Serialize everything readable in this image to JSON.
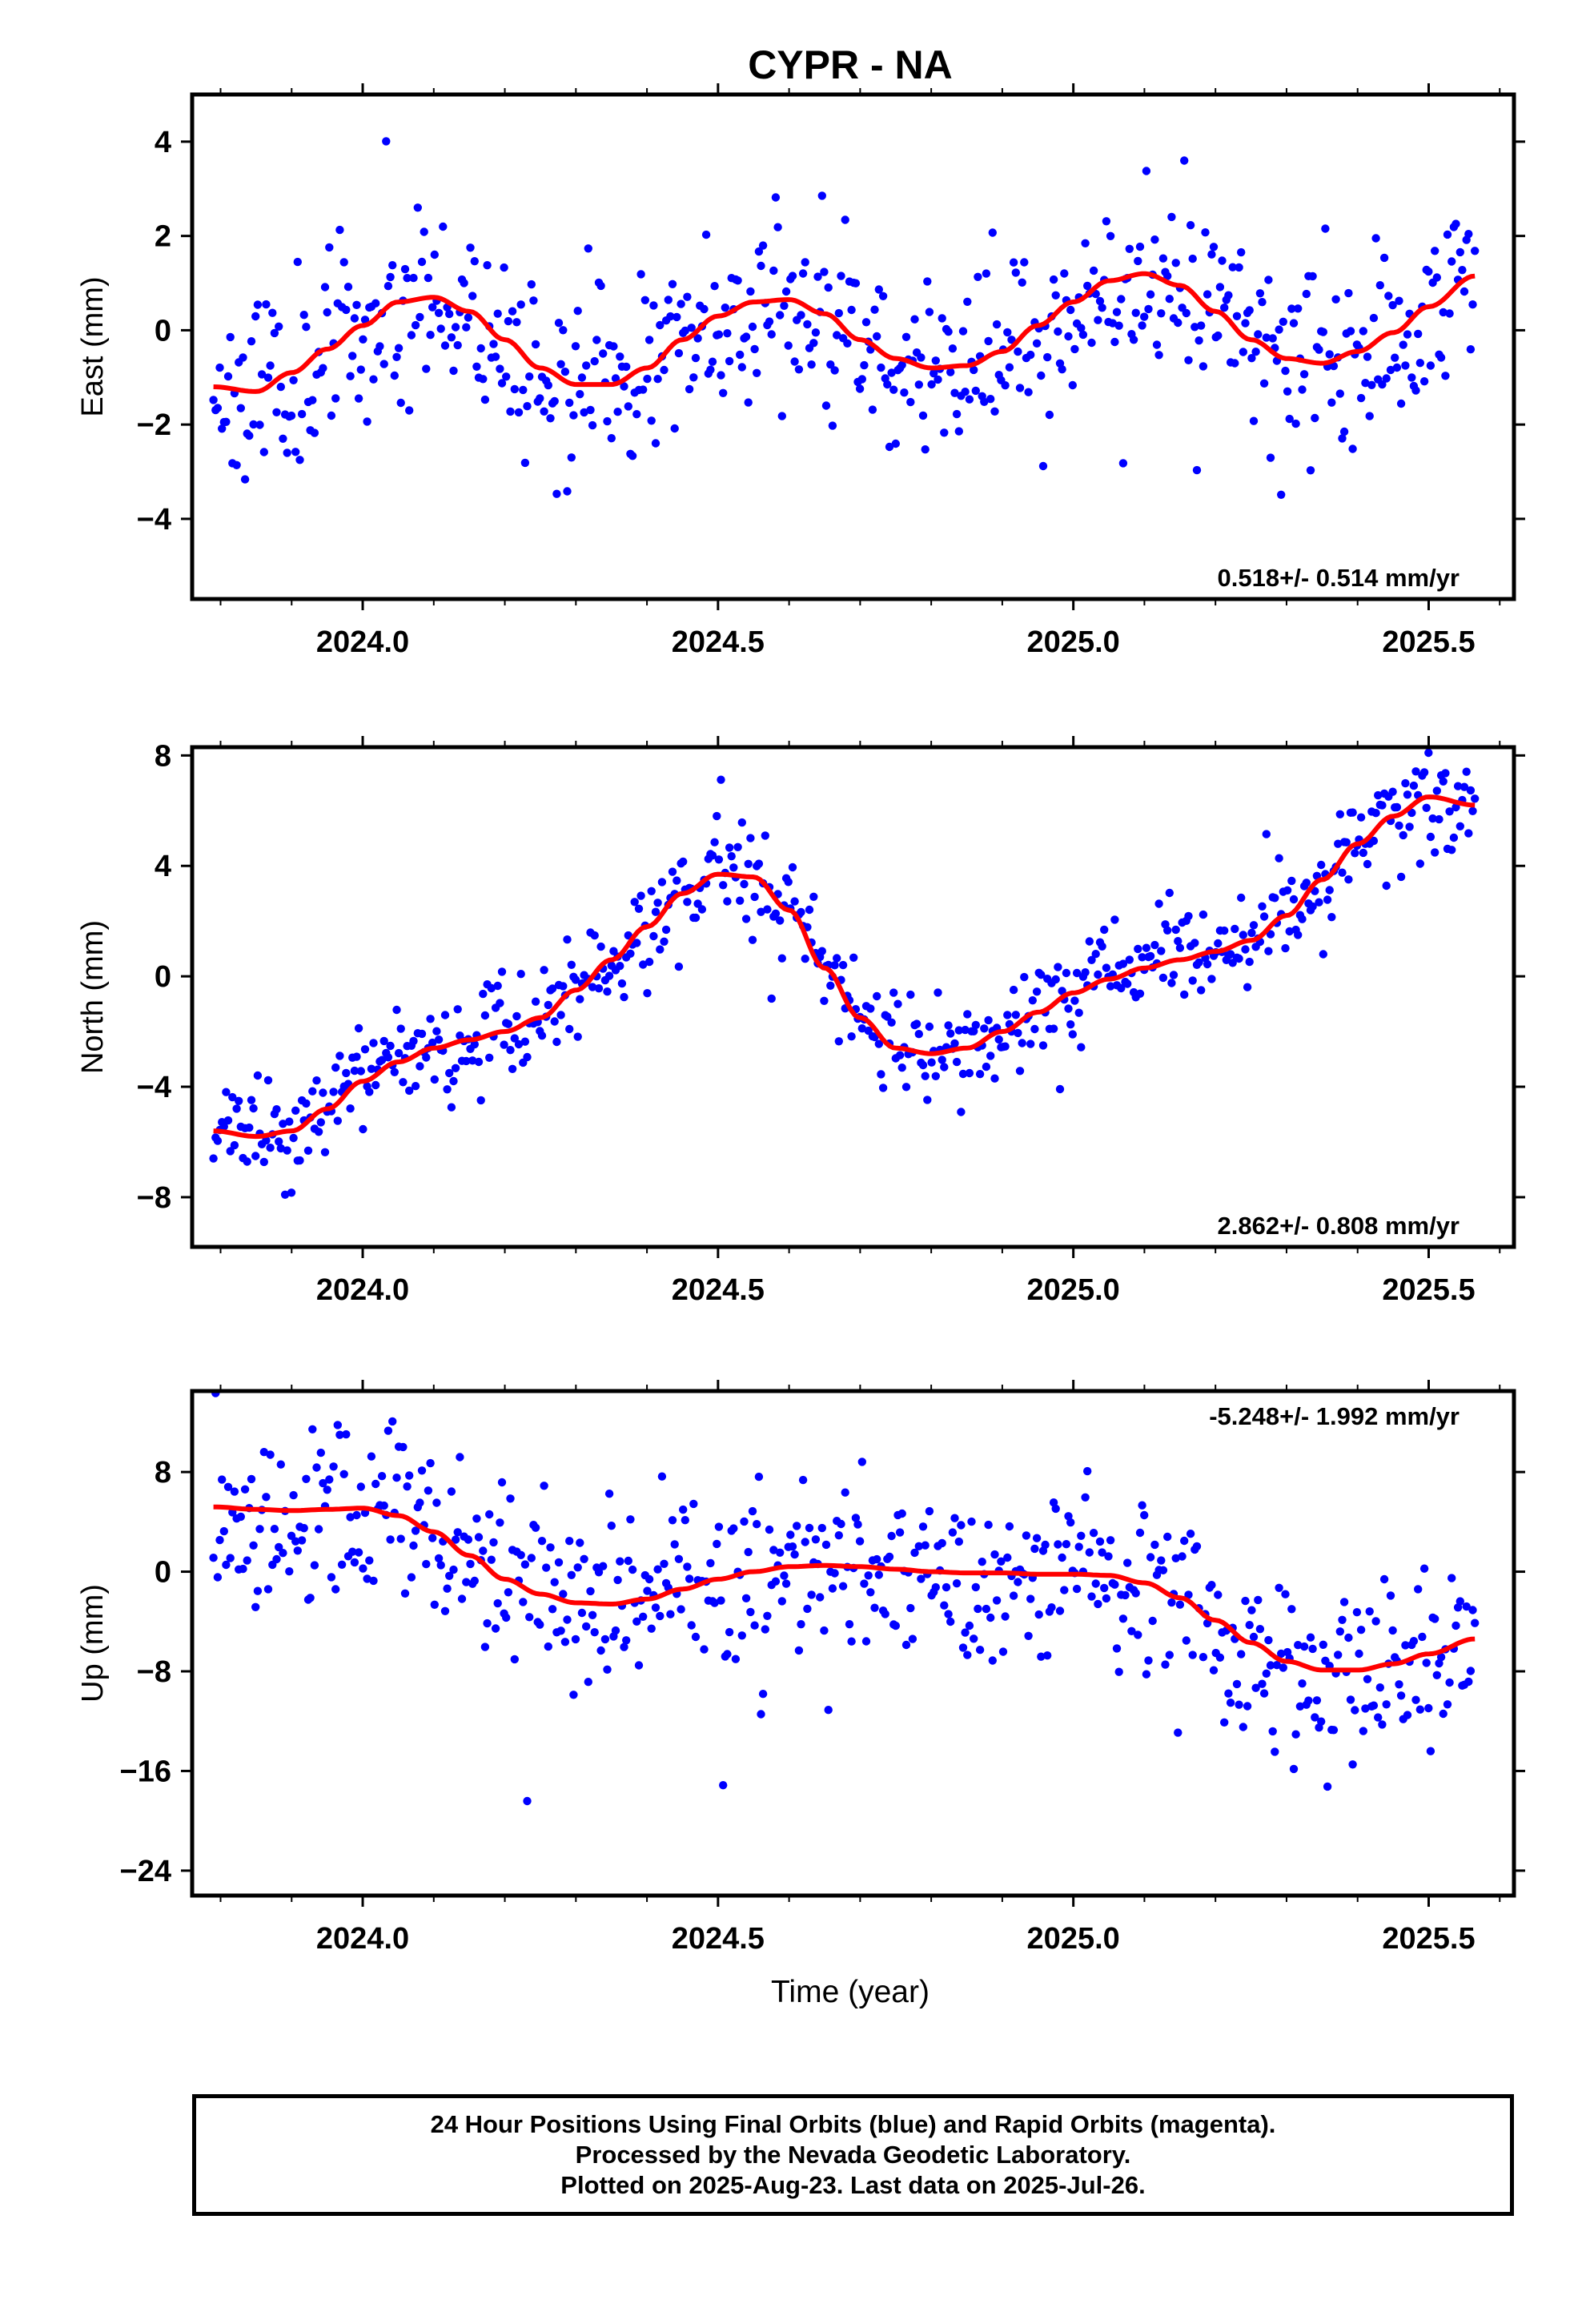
{
  "title": "CYPR - NA",
  "x_axis_label": "Time (year)",
  "x_ticks": [
    "2024.0",
    "2024.5",
    "2025.0",
    "2025.5"
  ],
  "footer": {
    "line1": "24 Hour Positions Using Final Orbits (blue) and Rapid Orbits (magenta).",
    "line2": "Processed by the Nevada Geodetic Laboratory.",
    "line3": "Plotted on 2025-Aug-23. Last data on 2025-Jul-26."
  },
  "colors": {
    "points": "#0000ff",
    "fit": "#ff0000",
    "frame": "#000000"
  },
  "chart_data": [
    {
      "type": "scatter",
      "ylabel": "East (mm)",
      "xlim": [
        2023.76,
        2025.62
      ],
      "ylim": [
        -5.7,
        5.0
      ],
      "yticks": [
        -4,
        -2,
        0,
        2,
        4
      ],
      "rate_label": "0.518+/- 0.514 mm/yr",
      "rate_position": "bottom-right",
      "series": [
        {
          "kind": "points",
          "x_start": 2023.79,
          "x_end": 2025.565,
          "count": 600,
          "fit_ref": "trend",
          "scatter_sd": 1.0,
          "seed": 11
        },
        {
          "kind": "fit",
          "x": [
            2023.79,
            2023.85,
            2023.9,
            2023.95,
            2024.0,
            2024.05,
            2024.1,
            2024.15,
            2024.2,
            2024.25,
            2024.3,
            2024.35,
            2024.4,
            2024.45,
            2024.5,
            2024.55,
            2024.6,
            2024.65,
            2024.7,
            2024.75,
            2024.8,
            2024.85,
            2024.9,
            2024.95,
            2025.0,
            2025.05,
            2025.1,
            2025.15,
            2025.2,
            2025.25,
            2025.3,
            2025.35,
            2025.4,
            2025.45,
            2025.5,
            2025.565
          ],
          "y": [
            -1.2,
            -1.3,
            -0.9,
            -0.4,
            0.1,
            0.6,
            0.7,
            0.4,
            -0.2,
            -0.8,
            -1.15,
            -1.15,
            -0.8,
            -0.2,
            0.3,
            0.6,
            0.65,
            0.35,
            -0.2,
            -0.6,
            -0.8,
            -0.75,
            -0.45,
            0.1,
            0.6,
            1.05,
            1.2,
            0.95,
            0.4,
            -0.2,
            -0.6,
            -0.7,
            -0.45,
            -0.05,
            0.5,
            1.15
          ]
        }
      ]
    },
    {
      "type": "scatter",
      "ylabel": "North (mm)",
      "xlim": [
        2023.76,
        2025.62
      ],
      "ylim": [
        -9.8,
        8.3
      ],
      "yticks": [
        -8,
        -4,
        0,
        4,
        8
      ],
      "rate_label": "2.862+/- 0.808 mm/yr",
      "rate_position": "bottom-right",
      "series": [
        {
          "kind": "points",
          "x_start": 2023.79,
          "x_end": 2025.565,
          "count": 600,
          "fit_ref": "trend",
          "scatter_sd": 0.9,
          "seed": 23
        },
        {
          "kind": "fit",
          "x": [
            2023.79,
            2023.85,
            2023.9,
            2023.95,
            2024.0,
            2024.05,
            2024.1,
            2024.15,
            2024.2,
            2024.25,
            2024.3,
            2024.35,
            2024.4,
            2024.45,
            2024.5,
            2024.55,
            2024.6,
            2024.65,
            2024.7,
            2024.75,
            2024.8,
            2024.85,
            2024.9,
            2024.95,
            2025.0,
            2025.05,
            2025.1,
            2025.15,
            2025.2,
            2025.25,
            2025.3,
            2025.35,
            2025.4,
            2025.45,
            2025.5,
            2025.565
          ],
          "y": [
            -5.6,
            -5.8,
            -5.6,
            -4.8,
            -3.8,
            -3.1,
            -2.6,
            -2.3,
            -2.0,
            -1.5,
            -0.5,
            0.6,
            1.8,
            3.0,
            3.7,
            3.6,
            2.4,
            0.3,
            -1.5,
            -2.6,
            -2.8,
            -2.6,
            -2.0,
            -1.3,
            -0.6,
            -0.1,
            0.3,
            0.6,
            0.9,
            1.3,
            2.2,
            3.5,
            4.8,
            5.8,
            6.5,
            6.2
          ]
        }
      ]
    },
    {
      "type": "scatter",
      "ylabel": "Up (mm)",
      "xlim": [
        2023.76,
        2025.62
      ],
      "ylim": [
        -26.0,
        14.5
      ],
      "yticks": [
        -24,
        -16,
        -8,
        0,
        8
      ],
      "rate_label": "-5.248+/- 1.992 mm/yr",
      "rate_position": "top-right",
      "series": [
        {
          "kind": "points",
          "x_start": 2023.79,
          "x_end": 2025.565,
          "count": 600,
          "fit_ref": "trend",
          "scatter_sd": 3.7,
          "seed": 37
        },
        {
          "kind": "fit",
          "x": [
            2023.79,
            2023.85,
            2023.9,
            2023.95,
            2024.0,
            2024.05,
            2024.1,
            2024.15,
            2024.2,
            2024.25,
            2024.3,
            2024.35,
            2024.4,
            2024.45,
            2024.5,
            2024.55,
            2024.6,
            2024.65,
            2024.7,
            2024.75,
            2024.8,
            2024.85,
            2024.9,
            2024.95,
            2025.0,
            2025.05,
            2025.1,
            2025.15,
            2025.2,
            2025.25,
            2025.3,
            2025.35,
            2025.4,
            2025.45,
            2025.5,
            2025.565
          ],
          "y": [
            5.2,
            5.0,
            4.9,
            5.0,
            5.1,
            4.5,
            3.2,
            1.3,
            -0.6,
            -1.8,
            -2.5,
            -2.6,
            -2.2,
            -1.4,
            -0.6,
            0.0,
            0.4,
            0.5,
            0.4,
            0.2,
            0.0,
            -0.1,
            -0.1,
            -0.2,
            -0.2,
            -0.3,
            -0.9,
            -2.1,
            -3.9,
            -5.7,
            -7.2,
            -7.9,
            -7.9,
            -7.4,
            -6.6,
            -5.4
          ]
        }
      ]
    }
  ]
}
